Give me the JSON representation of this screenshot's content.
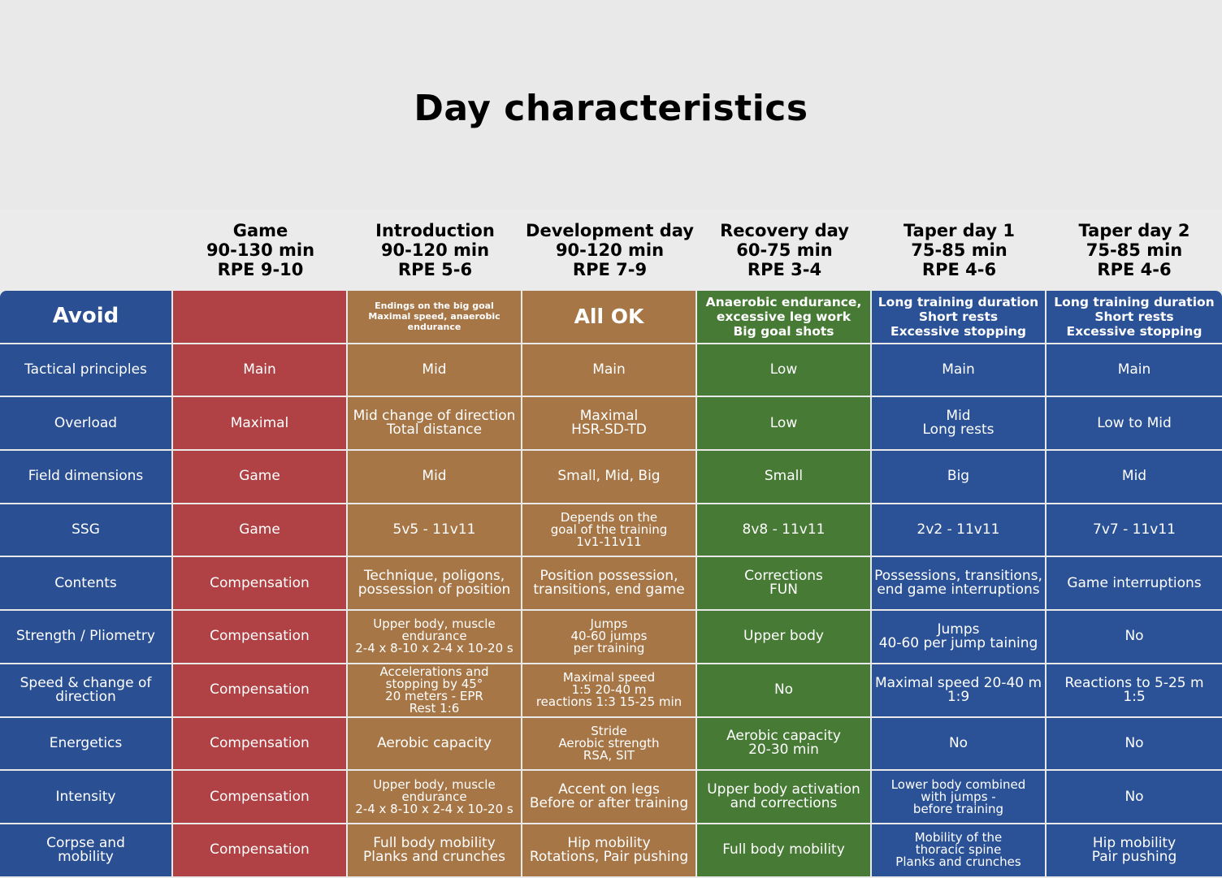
{
  "title": "Day characteristics",
  "columns": [
    {
      "name": "Game",
      "duration": "90-130 min",
      "rpe": "RPE 9-10"
    },
    {
      "name": "Introduction",
      "duration": "90-120 min",
      "rpe": "RPE 5-6"
    },
    {
      "name": "Development day",
      "duration": "90-120 min",
      "rpe": "RPE 7-9"
    },
    {
      "name": "Recovery day",
      "duration": "60-75 min",
      "rpe": "RPE 3-4"
    },
    {
      "name": "Taper day 1",
      "duration": "75-85 min",
      "rpe": "RPE 4-6"
    },
    {
      "name": "Taper day 2",
      "duration": "75-85 min",
      "rpe": "RPE 4-6"
    }
  ],
  "avoid": {
    "label": "Avoid",
    "game": [],
    "intro": [
      "Endings on the big goal",
      "Maximal speed, anaerobic",
      "endurance"
    ],
    "dev": [
      "All OK"
    ],
    "rec": [
      "Anaerobic endurance,",
      "excessive leg work",
      "Big goal shots"
    ],
    "t1": [
      "Long training duration",
      "Short rests",
      "Excessive stopping"
    ],
    "t2": [
      "Long training duration",
      "Short rests",
      "Excessive stopping"
    ]
  },
  "rows": [
    {
      "label": [
        "Tactical principles"
      ],
      "game": [
        "Main"
      ],
      "intro": [
        "Mid"
      ],
      "dev": [
        "Main"
      ],
      "rec": [
        "Low"
      ],
      "t1": [
        "Main"
      ],
      "t2": [
        "Main"
      ]
    },
    {
      "label": [
        "Overload"
      ],
      "game": [
        "Maximal"
      ],
      "intro": [
        "Mid change of direction",
        "Total distance"
      ],
      "dev": [
        "Maximal",
        "HSR-SD-TD"
      ],
      "rec": [
        "Low"
      ],
      "t1": [
        "Mid",
        "Long rests"
      ],
      "t2": [
        "Low to Mid"
      ]
    },
    {
      "label": [
        "Field dimensions"
      ],
      "game": [
        "Game"
      ],
      "intro": [
        "Mid"
      ],
      "dev": [
        "Small, Mid, Big"
      ],
      "rec": [
        "Small"
      ],
      "t1": [
        "Big"
      ],
      "t2": [
        "Mid"
      ]
    },
    {
      "label": [
        "SSG"
      ],
      "game": [
        "Game"
      ],
      "intro": [
        "5v5 - 11v11"
      ],
      "dev": [
        "Depends on the",
        "goal of the training",
        "1v1-11v11"
      ],
      "rec": [
        "8v8 - 11v11"
      ],
      "t1": [
        "2v2 - 11v11"
      ],
      "t2": [
        "7v7 - 11v11"
      ]
    },
    {
      "label": [
        "Contents"
      ],
      "game": [
        "Compensation"
      ],
      "intro": [
        "Technique, poligons,",
        "possession of position"
      ],
      "dev": [
        "Position possession,",
        "transitions, end game"
      ],
      "rec": [
        "Corrections",
        "FUN"
      ],
      "t1": [
        "Possessions, transitions,",
        "end game interruptions"
      ],
      "t2": [
        "Game interruptions"
      ]
    },
    {
      "label": [
        "Strength / Pliometry"
      ],
      "game": [
        "Compensation"
      ],
      "intro": [
        "Upper body, muscle",
        "endurance",
        "2-4 x 8-10 x 2-4 x 10-20 s"
      ],
      "dev": [
        "Jumps",
        "40-60 jumps",
        "per training"
      ],
      "rec": [
        "Upper body"
      ],
      "t1": [
        "Jumps",
        "40-60 per jump taining"
      ],
      "t2": [
        "No"
      ]
    },
    {
      "label": [
        "Speed & change of",
        "direction"
      ],
      "game": [
        "Compensation"
      ],
      "intro": [
        "Accelerations and",
        "stopping by 45°",
        "20 meters - EPR",
        "Rest 1:6"
      ],
      "dev": [
        "Maximal speed",
        "1:5 20-40 m",
        "reactions 1:3 15-25 min"
      ],
      "rec": [
        "No"
      ],
      "t1": [
        "Maximal speed 20-40 m",
        "1:9"
      ],
      "t2": [
        "Reactions to 5-25 m",
        "1:5"
      ]
    },
    {
      "label": [
        "Energetics"
      ],
      "game": [
        "Compensation"
      ],
      "intro": [
        "Aerobic capacity"
      ],
      "dev": [
        "Stride",
        "Aerobic strength",
        "RSA, SIT"
      ],
      "rec": [
        "Aerobic capacity",
        "20-30 min"
      ],
      "t1": [
        "No"
      ],
      "t2": [
        "No"
      ]
    },
    {
      "label": [
        "Intensity"
      ],
      "game": [
        "Compensation"
      ],
      "intro": [
        "Upper body, muscle",
        "endurance",
        "2-4 x 8-10 x 2-4 x 10-20 s"
      ],
      "dev": [
        "Accent on legs",
        "Before or after training"
      ],
      "rec": [
        "Upper body activation",
        "and corrections"
      ],
      "t1": [
        "Lower body combined",
        "with jumps -",
        "before training"
      ],
      "t2": [
        "No"
      ]
    },
    {
      "label": [
        "Corpse and",
        "mobility"
      ],
      "game": [
        "Compensation"
      ],
      "intro": [
        "Full body mobility",
        "Planks and crunches"
      ],
      "dev": [
        "Hip mobility",
        "Rotations, Pair pushing"
      ],
      "rec": [
        "Full body mobility"
      ],
      "t1": [
        "Mobility of the",
        "thoracic spine",
        "Planks and crunches"
      ],
      "t2": [
        "Hip mobility",
        "Pair pushing"
      ]
    }
  ],
  "colors": {
    "label": "#2b4f93",
    "game": "#b04144",
    "intro": "#a67647",
    "dev": "#a67647",
    "recovery": "#467a35",
    "taper": "#2b5297"
  }
}
